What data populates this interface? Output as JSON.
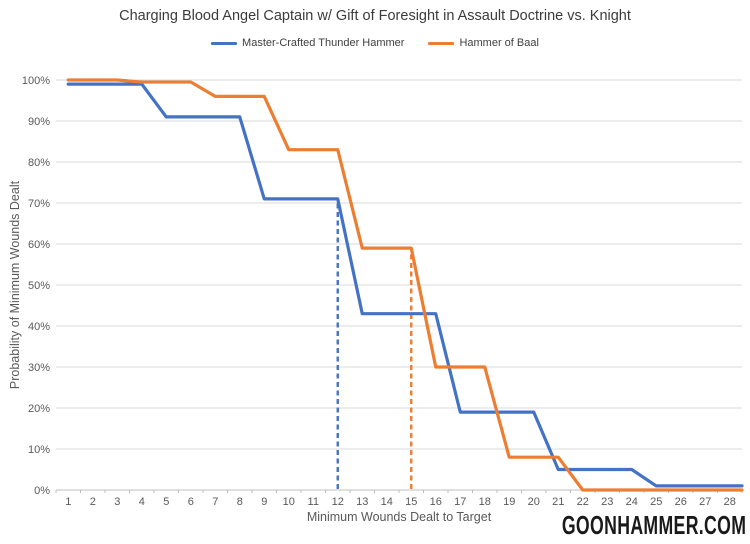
{
  "watermark": "GOONHAMMER.COM",
  "colors": {
    "background": "#FFFFFF",
    "gridline": "#D9D9D9",
    "axis_line": "#BFBFBF",
    "tick_label": "#595959",
    "title_text": "#3B3B3B",
    "watermark_text": "#1A1A1A",
    "series_blue": "#4472C4",
    "series_orange": "#ED7D31"
  },
  "chart_data": {
    "type": "line",
    "title": "Charging Blood Angel Captain w/ Gift of Foresight in Assault Doctrine vs. Knight",
    "xlabel": "Minimum Wounds Dealt to Target",
    "ylabel": "Probability of Minimum Wounds Dealt",
    "x": [
      1,
      2,
      3,
      4,
      5,
      6,
      7,
      8,
      9,
      10,
      11,
      12,
      13,
      14,
      15,
      16,
      17,
      18,
      19,
      20,
      21,
      22,
      23,
      24,
      25,
      26,
      27,
      28
    ],
    "ylim": [
      0,
      100
    ],
    "ytick_step": 10,
    "ytick_suffix": "%",
    "grid": true,
    "legend_position": "top",
    "series": [
      {
        "name": "Master-Crafted Thunder Hammer",
        "color": "#4472C4",
        "values": [
          99,
          99,
          99,
          99,
          91,
          91,
          91,
          91,
          71,
          71,
          71,
          71,
          43,
          43,
          43,
          43,
          19,
          19,
          19,
          19,
          5,
          5,
          5,
          5,
          1,
          1,
          1,
          1
        ]
      },
      {
        "name": "Hammer of Baal",
        "color": "#ED7D31",
        "values": [
          100,
          100,
          100,
          99.5,
          99.5,
          99.5,
          96,
          96,
          96,
          83,
          83,
          83,
          59,
          59,
          59,
          30,
          30,
          30,
          8,
          8,
          8,
          0,
          0,
          0,
          0,
          0,
          0,
          0
        ]
      }
    ],
    "annotations": [
      {
        "type": "vline_dashed",
        "x": 12,
        "y_top": 71,
        "color": "#4472C4"
      },
      {
        "type": "vline_dashed",
        "x": 15,
        "y_top": 59,
        "color": "#ED7D31"
      }
    ]
  }
}
